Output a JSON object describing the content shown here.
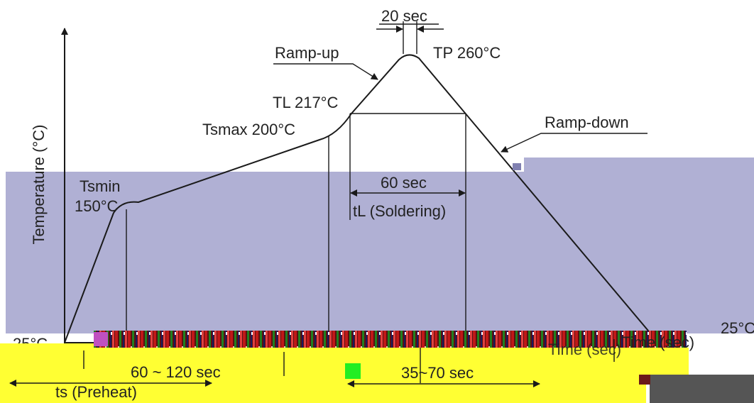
{
  "diagram": {
    "y_axis_label": "Temperature (°C)",
    "x_axis_label_garbled": "Time (sec)",
    "x_axis_label": "Time (sec)",
    "labels": {
      "dwell_peak": "20 sec",
      "tp": "TP 260°C",
      "ramp_up": "Ramp-up",
      "tl": "TL 217°C",
      "tsmax": "Tsmax 200°C",
      "ramp_down": "Ramp-down",
      "tsmin_line1": "Tsmin",
      "tsmin_line2": "150°C",
      "tl_time": "60 sec",
      "soldering": "tL (Soldering)",
      "base_temp": "25°C",
      "base_temp_right": "25°C",
      "preheat_time": "60 ~ 120 sec",
      "preheat": "ts (Preheat)",
      "total_time": "35~70 sec"
    }
  },
  "colors": {
    "overlay_band": "#b0b0d4",
    "yellow_band": "#ffff33",
    "green_patch": "#22ee22",
    "dark_patch": "#555555",
    "line": "#1a1a1a"
  }
}
